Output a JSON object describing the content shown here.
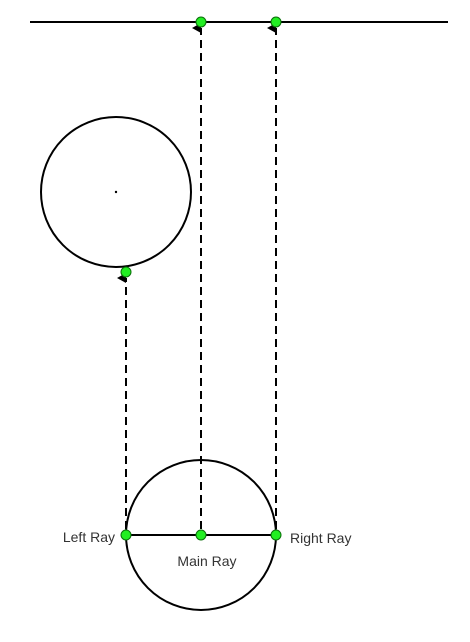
{
  "labels": {
    "left_ray": "Left Ray",
    "main_ray": "Main Ray",
    "right_ray": "Right Ray"
  },
  "colors": {
    "stroke": "#000000",
    "point_fill": "#22ee22",
    "point_stroke": "#0a6e0a",
    "label_text": "#333333"
  }
}
